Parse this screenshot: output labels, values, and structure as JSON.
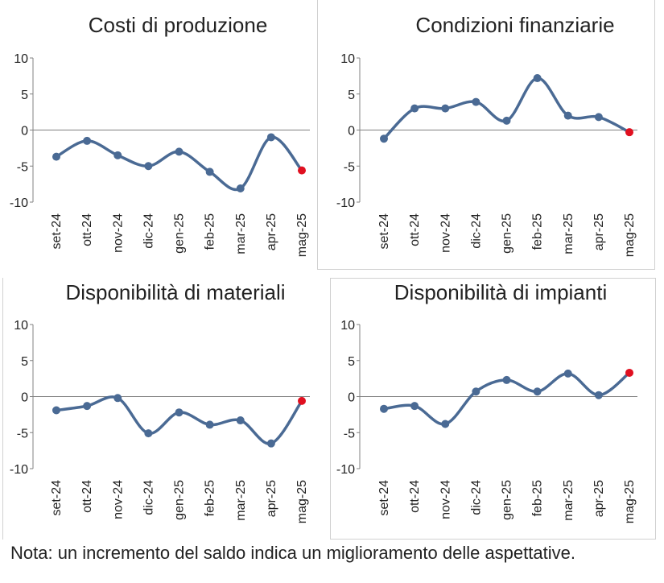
{
  "note": "Nota: un incremento del saldo indica un miglioramento delle aspettative.",
  "colors": {
    "line": "#4a6a94",
    "last_point": "#e01020",
    "axis": "#808080",
    "text": "#222222"
  },
  "chart_data": [
    {
      "type": "line",
      "title": "Costi di produzione",
      "categories": [
        "set-24",
        "ott-24",
        "nov-24",
        "dic-24",
        "gen-25",
        "feb-25",
        "mar-25",
        "apr-25",
        "mag-25"
      ],
      "values": [
        -3.7,
        -1.5,
        -3.5,
        -5.0,
        -3.0,
        -5.8,
        -8.1,
        -1.0,
        -5.6
      ],
      "ylim": [
        -10,
        10
      ],
      "yticks": [
        10,
        5,
        0,
        -5,
        -10
      ],
      "highlight_last": true
    },
    {
      "type": "line",
      "title": "Condizioni finanziarie",
      "categories": [
        "set-24",
        "ott-24",
        "nov-24",
        "dic-24",
        "gen-25",
        "feb-25",
        "mar-25",
        "apr-25",
        "mag-25"
      ],
      "values": [
        -1.2,
        3.0,
        3.0,
        3.9,
        1.3,
        7.2,
        2.0,
        1.8,
        -0.3
      ],
      "ylim": [
        -10,
        10
      ],
      "yticks": [
        10,
        5,
        0,
        -5,
        -10
      ],
      "highlight_last": true
    },
    {
      "type": "line",
      "title": "Disponibilità di materiali",
      "categories": [
        "set-24",
        "ott-24",
        "nov-24",
        "dic-24",
        "gen-25",
        "feb-25",
        "mar-25",
        "apr-25",
        "mag-25"
      ],
      "values": [
        -1.9,
        -1.3,
        -0.2,
        -5.1,
        -2.2,
        -3.9,
        -3.3,
        -6.5,
        -0.6
      ],
      "ylim": [
        -10,
        10
      ],
      "yticks": [
        10,
        5,
        0,
        -5,
        -10
      ],
      "highlight_last": true
    },
    {
      "type": "line",
      "title": "Disponibilità di impianti",
      "categories": [
        "set-24",
        "ott-24",
        "nov-24",
        "dic-24",
        "gen-25",
        "feb-25",
        "mar-25",
        "apr-25",
        "mag-25"
      ],
      "values": [
        -1.7,
        -1.3,
        -3.8,
        0.7,
        2.3,
        0.7,
        3.2,
        0.2,
        3.3
      ],
      "ylim": [
        -10,
        10
      ],
      "yticks": [
        10,
        5,
        0,
        -5,
        -10
      ],
      "highlight_last": true
    }
  ]
}
